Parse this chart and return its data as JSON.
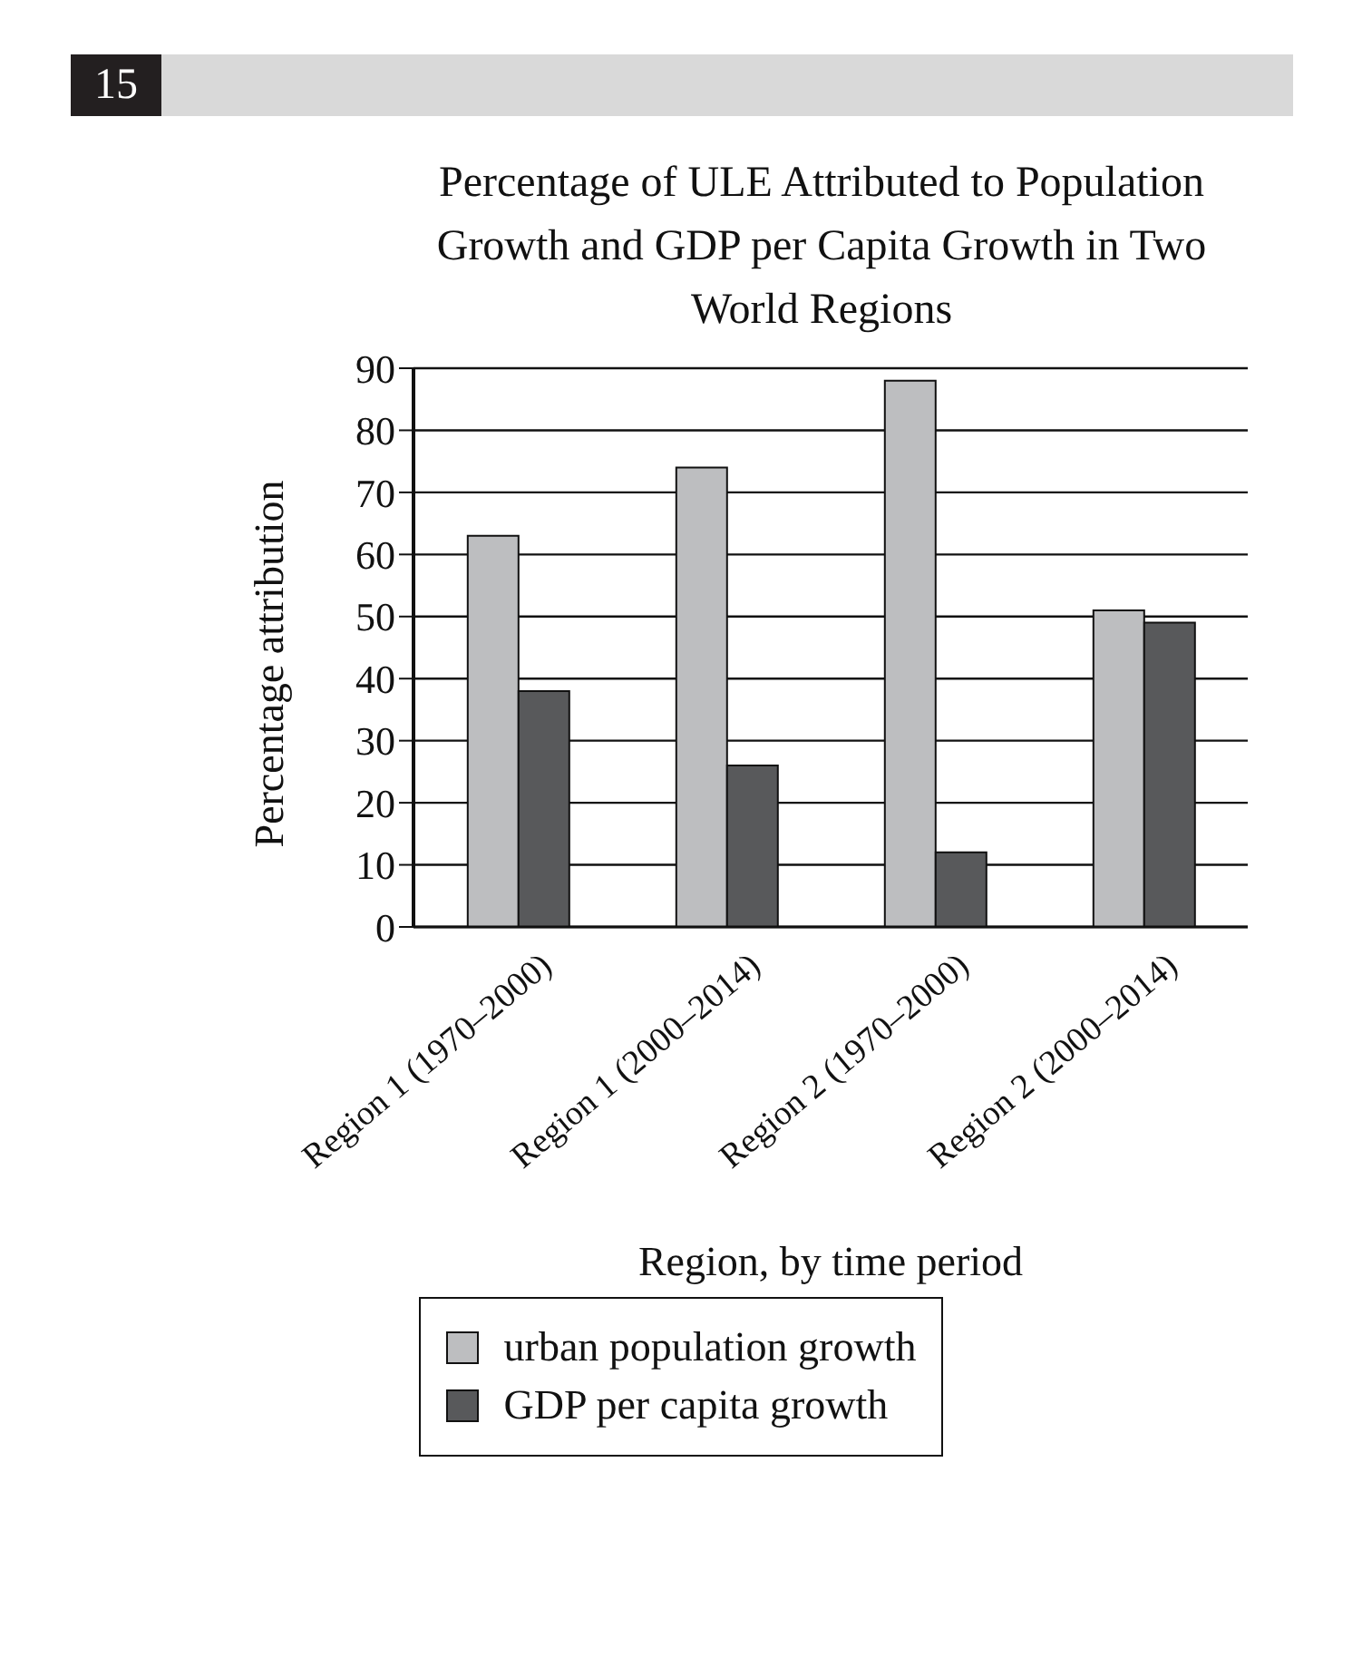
{
  "chart_data": {
    "type": "bar",
    "title": "Percentage of ULE Attributed to Population Growth and GDP per Capita Growth in Two World Regions",
    "xlabel": "Region, by time period",
    "ylabel": "Percentage attribution",
    "annotations": [
      "15"
    ],
    "categories": [
      "Region 1 (1970–2000)",
      "Region 1 (2000–2014)",
      "Region 2 (1970–2000)",
      "Region 2 (2000–2014)"
    ],
    "series": [
      {
        "name": "urban population growth",
        "color": "#bdbec0",
        "values": [
          63,
          74,
          88,
          51
        ]
      },
      {
        "name": "GDP per capita growth",
        "color": "#58595b",
        "values": [
          38,
          26,
          12,
          49
        ]
      }
    ],
    "ylim": [
      0,
      90
    ],
    "yticks": [
      0,
      10,
      20,
      30,
      40,
      50,
      60,
      70,
      80,
      90
    ],
    "grid": "y",
    "legend": "bottom"
  }
}
